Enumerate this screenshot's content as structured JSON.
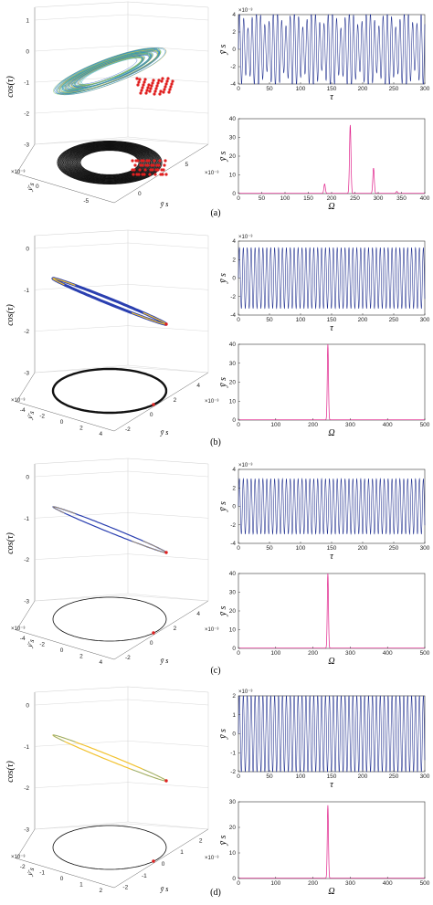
{
  "chart_data": [
    {
      "panel": "(a)",
      "caption": "(a)",
      "type": "3d-trajectory",
      "axes": {
        "z_label": "cos(τ)",
        "x_label": "ȳ s",
        "y_label": "ẏ̄ s",
        "z_ticks": [
          "1",
          "0",
          "-1",
          "-2",
          "-3"
        ],
        "x_ticks": [
          "0",
          "5"
        ],
        "y_ticks": [
          "0",
          "-5"
        ],
        "x_exponent": "×10⁻³",
        "y_exponent": "×10⁻³",
        "z_range": [
          -3,
          1
        ],
        "xy_range": [
          -5,
          5
        ]
      },
      "orbit_type": "chaotic",
      "colors": {
        "trajectory": "#3aa0c8",
        "trajectory_alt": "#f2c230",
        "projection": "#111111",
        "poincare": "#e02020"
      }
    },
    {
      "panel": "(a)",
      "type": "line",
      "caption": "",
      "xlabel": "τ",
      "ylabel": "ȳ s",
      "xlim": [
        0,
        300
      ],
      "ylim": [
        -4,
        4
      ],
      "y_exponent": "×10⁻³",
      "x_ticks": [
        0,
        50,
        100,
        150,
        200,
        250,
        300
      ],
      "y_ticks": [
        -4,
        -2,
        0,
        2,
        4
      ],
      "signal": {
        "amplitude": 4.3,
        "period": 6.8,
        "modulation": "quasi-periodic"
      },
      "color": "#1a2a8c"
    },
    {
      "panel": "(a)",
      "type": "line",
      "subtype": "spectrum",
      "xlabel": "Ω",
      "ylabel": "ȳ s",
      "xlim": [
        0,
        400
      ],
      "ylim": [
        0,
        40
      ],
      "x_ticks": [
        0,
        50,
        100,
        150,
        200,
        250,
        300,
        350,
        400
      ],
      "y_ticks": [
        0,
        10,
        20,
        30,
        40
      ],
      "peaks": [
        {
          "x": 185,
          "y": 5
        },
        {
          "x": 240,
          "y": 36.5
        },
        {
          "x": 290,
          "y": 13.5
        },
        {
          "x": 340,
          "y": 1
        }
      ],
      "color": "#e0208a"
    },
    {
      "panel": "(b)",
      "caption": "(b)",
      "type": "3d-trajectory",
      "axes": {
        "z_label": "cos(τ)",
        "x_label": "ȳ s",
        "y_label": "ẏ̄ s",
        "z_ticks": [
          "0",
          "-1",
          "-2",
          "-3"
        ],
        "x_ticks": [
          "-2",
          "0",
          "2",
          "4"
        ],
        "y_ticks": [
          "-4",
          "-2",
          "0",
          "2",
          "4"
        ],
        "x_exponent": "×10⁻³",
        "y_exponent": "×10⁻³"
      },
      "orbit_type": "periodic"
    },
    {
      "panel": "(b)",
      "type": "line",
      "caption": "",
      "xlabel": "τ",
      "ylabel": "ȳ s",
      "xlim": [
        0,
        300
      ],
      "ylim": [
        -4,
        4
      ],
      "y_exponent": "×10⁻³",
      "x_ticks": [
        0,
        50,
        100,
        150,
        200,
        250,
        300
      ],
      "y_ticks": [
        -4,
        -2,
        0,
        2,
        4
      ],
      "signal": {
        "amplitude": 3.3,
        "period": 6.3,
        "modulation": "none"
      },
      "color": "#1a2a8c"
    },
    {
      "panel": "(b)",
      "type": "line",
      "subtype": "spectrum",
      "xlabel": "Ω",
      "ylabel": "ȳ s",
      "xlim": [
        0,
        500
      ],
      "ylim": [
        0,
        40
      ],
      "x_ticks": [
        0,
        100,
        200,
        300,
        400,
        500
      ],
      "y_ticks": [
        0,
        10,
        20,
        30,
        40
      ],
      "peaks": [
        {
          "x": 240,
          "y": 40
        }
      ],
      "color": "#e0208a"
    },
    {
      "panel": "(c)",
      "caption": "(c)",
      "type": "3d-trajectory",
      "axes": {
        "z_label": "cos(τ)",
        "x_label": "ȳ s",
        "y_label": "ẏ̄ s",
        "z_ticks": [
          "0",
          "-1",
          "-2",
          "-3"
        ],
        "x_ticks": [
          "-2",
          "0",
          "2",
          "4"
        ],
        "y_ticks": [
          "-4",
          "-2",
          "0",
          "2",
          "4"
        ],
        "x_exponent": "×10⁻³",
        "y_exponent": "×10⁻³"
      },
      "orbit_type": "periodic"
    },
    {
      "panel": "(c)",
      "type": "line",
      "caption": "",
      "xlabel": "τ",
      "ylabel": "ȳ s",
      "xlim": [
        0,
        300
      ],
      "ylim": [
        -4,
        4
      ],
      "y_exponent": "×10⁻³",
      "x_ticks": [
        0,
        50,
        100,
        150,
        200,
        250,
        300
      ],
      "y_ticks": [
        -4,
        -2,
        0,
        2,
        4
      ],
      "signal": {
        "amplitude": 3.0,
        "period": 6.3,
        "modulation": "none"
      },
      "color": "#1a2a8c"
    },
    {
      "panel": "(c)",
      "type": "line",
      "subtype": "spectrum",
      "xlabel": "Ω",
      "ylabel": "ȳ s",
      "xlim": [
        0,
        500
      ],
      "ylim": [
        0,
        40
      ],
      "x_ticks": [
        0,
        100,
        200,
        300,
        400,
        500
      ],
      "y_ticks": [
        0,
        10,
        20,
        30,
        40
      ],
      "peaks": [
        {
          "x": 240,
          "y": 40
        }
      ],
      "color": "#e0208a"
    },
    {
      "panel": "(d)",
      "caption": "(d)",
      "type": "3d-trajectory",
      "axes": {
        "z_label": "cos(τ)",
        "x_label": "ȳ s",
        "y_label": "ẏ̄ s",
        "z_ticks": [
          "0",
          "-1",
          "-2",
          "-3"
        ],
        "x_ticks": [
          "-2",
          "-1",
          "0",
          "1",
          "2"
        ],
        "y_ticks": [
          "-2",
          "-1",
          "0",
          "1",
          "2"
        ],
        "x_exponent": "×10⁻³",
        "y_exponent": "×10⁻³"
      },
      "orbit_type": "periodic"
    },
    {
      "panel": "(d)",
      "type": "line",
      "caption": "",
      "xlabel": "τ",
      "ylabel": "ȳ s",
      "xlim": [
        0,
        300
      ],
      "ylim": [
        -2,
        2
      ],
      "y_exponent": "×10⁻³",
      "x_ticks": [
        0,
        50,
        100,
        150,
        200,
        250,
        300
      ],
      "y_ticks": [
        -2,
        -1,
        0,
        1,
        2
      ],
      "signal": {
        "amplitude": 2.05,
        "period": 6.3,
        "modulation": "none"
      },
      "color": "#1a2a8c"
    },
    {
      "panel": "(d)",
      "type": "line",
      "subtype": "spectrum",
      "xlabel": "Ω",
      "ylabel": "ȳ s",
      "xlim": [
        0,
        500
      ],
      "ylim": [
        0,
        30
      ],
      "x_ticks": [
        0,
        100,
        200,
        300,
        400,
        500
      ],
      "y_ticks": [
        0,
        10,
        20,
        30
      ],
      "peaks": [
        {
          "x": 240,
          "y": 28.5
        }
      ],
      "color": "#e0208a"
    }
  ]
}
